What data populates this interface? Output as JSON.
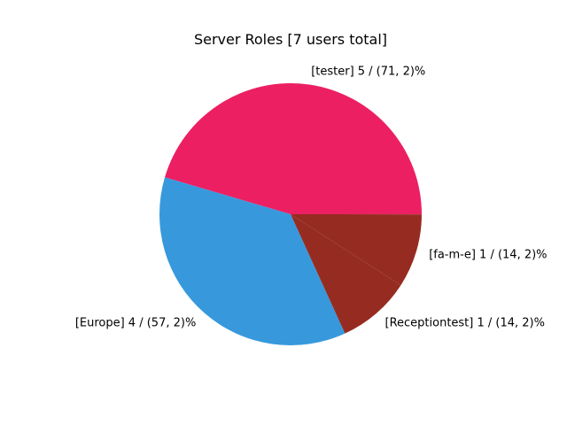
{
  "chart_data": {
    "type": "pie",
    "title": "Server Roles [7 users total]",
    "start_angle_deg": 0,
    "direction": "counterclockwise",
    "slices": [
      {
        "label": "[tester] 5 / (71, 2)%",
        "value": 5,
        "color": "#ec1f62"
      },
      {
        "label": "[Europe] 4 / (57, 2)%",
        "value": 4,
        "color": "#3799dc"
      },
      {
        "label": "[Receptiontest] 1 / (14, 2)%",
        "value": 1,
        "color": "#962c21"
      },
      {
        "label": "[fa-m-e] 1 / (14, 2)%",
        "value": 1,
        "color": "#962c21"
      }
    ]
  }
}
